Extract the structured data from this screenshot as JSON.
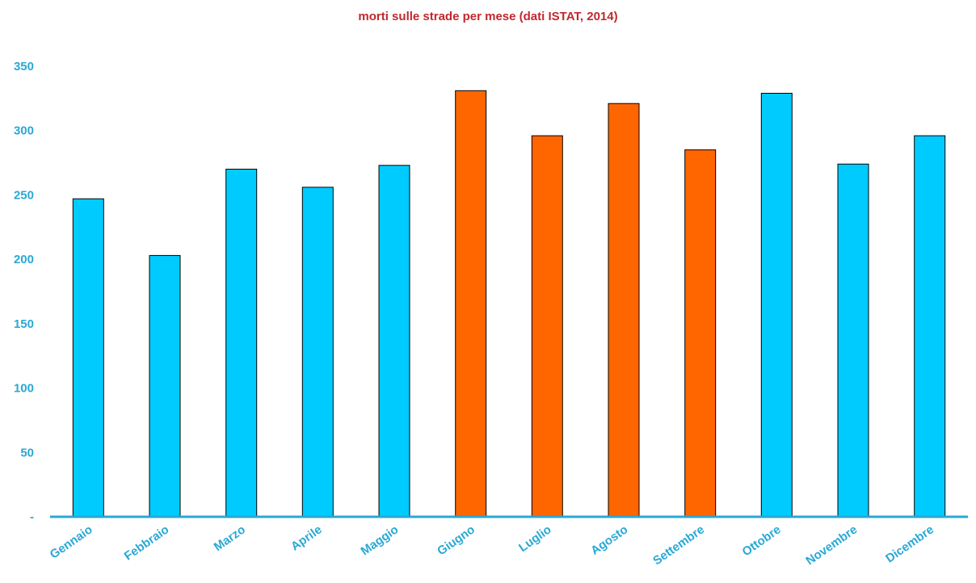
{
  "chart_data": {
    "type": "bar",
    "title": "morti sulle strade per mese (dati ISTAT, 2014)",
    "categories": [
      "Gennaio",
      "Febbraio",
      "Marzo",
      "Aprile",
      "Maggio",
      "Giugno",
      "Luglio",
      "Agosto",
      "Settembre",
      "Ottobre",
      "Novembre",
      "Dicembre"
    ],
    "values": [
      247,
      203,
      270,
      256,
      273,
      331,
      296,
      321,
      285,
      329,
      274,
      296
    ],
    "highlighted_categories": [
      "Giugno",
      "Luglio",
      "Agosto",
      "Settembre"
    ],
    "ylim": [
      0,
      350
    ],
    "yticks": [
      0,
      50,
      100,
      150,
      200,
      250,
      300,
      350
    ],
    "ytick_labels": [
      "-",
      "50",
      "100",
      "150",
      "200",
      "250",
      "300",
      "350"
    ],
    "grid": false,
    "xlabel": "",
    "ylabel": ""
  },
  "colors": {
    "bar_default": "#00cbff",
    "bar_highlight": "#ff6600",
    "bar_stroke": "#000000",
    "axis": "#29a8d4",
    "tick_label": "#29a8d4",
    "title": "#c0282d"
  }
}
